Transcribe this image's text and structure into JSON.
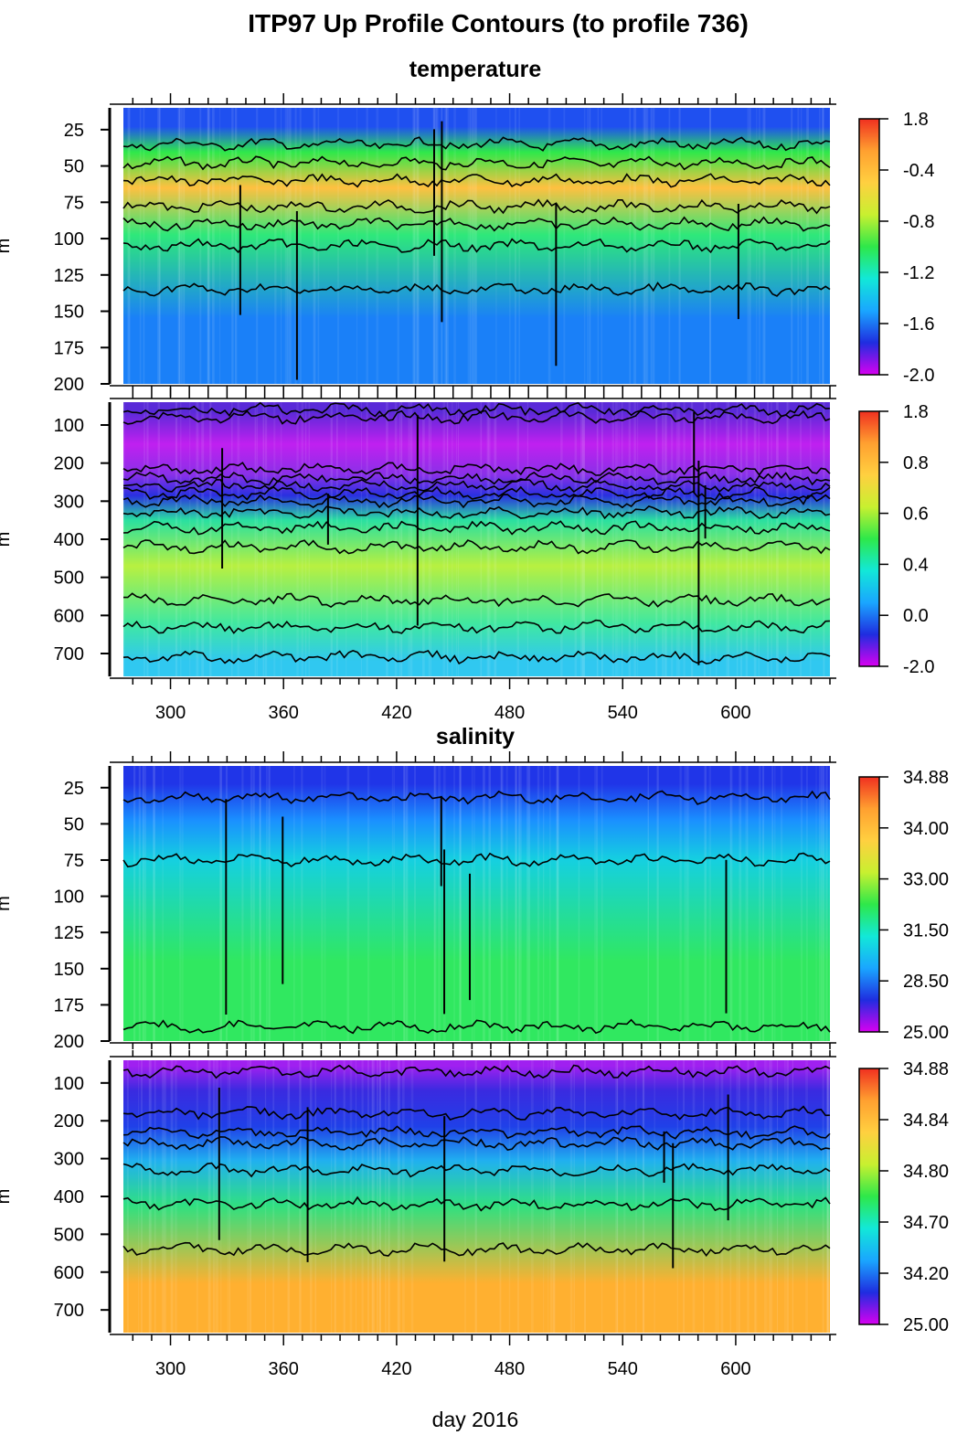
{
  "figure": {
    "title": "ITP97 Up Profile Contours (to profile 736)",
    "x_axis_label": "day 2016",
    "y_unit_label": "m"
  },
  "colors": {
    "temperature_scale": [
      "#d800f0",
      "#1f2de0",
      "#1aa6ff",
      "#12e8d8",
      "#2ee84a",
      "#c8f030",
      "#ffd040",
      "#ffa030",
      "#f03020"
    ],
    "salinity_scale": [
      "#d800f0",
      "#1f2de0",
      "#1aa6ff",
      "#12e8d8",
      "#2ee84a",
      "#c8f030",
      "#ffd040",
      "#ffa030",
      "#f03020"
    ]
  },
  "chart_data": [
    {
      "name": "temperature-upper",
      "section_title": "temperature",
      "type": "heatmap",
      "x_range": [
        275,
        650
      ],
      "y_range": [
        10,
        200
      ],
      "y_ticks": [
        25,
        50,
        75,
        100,
        125,
        150,
        175,
        200
      ],
      "x_ticks": [
        300,
        360,
        420,
        480,
        540,
        600
      ],
      "colorbar_ticks": [
        "1.8",
        "-0.4",
        "-0.8",
        "-1.2",
        "-1.6",
        "-2.0"
      ],
      "layers": [
        {
          "from": 10,
          "to": 36,
          "value_color": "#1f50f0"
        },
        {
          "from": 36,
          "to": 45,
          "value_color": "#2ee84a"
        },
        {
          "from": 45,
          "to": 85,
          "value_color": "#ffc040"
        },
        {
          "from": 85,
          "to": 110,
          "value_color": "#2ee87a"
        },
        {
          "from": 110,
          "to": 200,
          "value_color": "#1a80f8"
        }
      ],
      "contour_depths": [
        35,
        48,
        60,
        78,
        90,
        105,
        135
      ]
    },
    {
      "name": "temperature-lower",
      "type": "heatmap",
      "x_range": [
        275,
        650
      ],
      "y_range": [
        40,
        760
      ],
      "y_ticks": [
        100,
        200,
        300,
        400,
        500,
        600,
        700
      ],
      "x_ticks": [
        300,
        360,
        420,
        480,
        540,
        600
      ],
      "x_tick_labels": [
        "300",
        "360",
        "420",
        "480",
        "540",
        "600"
      ],
      "colorbar_ticks": [
        "1.8",
        "0.8",
        "0.6",
        "0.4",
        "0.0",
        "-2.0"
      ],
      "layers": [
        {
          "from": 40,
          "to": 90,
          "value_color": "#5a2ad8"
        },
        {
          "from": 90,
          "to": 210,
          "value_color": "#c020f0"
        },
        {
          "from": 210,
          "to": 250,
          "value_color": "#8a30e8"
        },
        {
          "from": 250,
          "to": 320,
          "value_color": "#2a30e0"
        },
        {
          "from": 320,
          "to": 380,
          "value_color": "#2ae0a0"
        },
        {
          "from": 380,
          "to": 560,
          "value_color": "#b8f040"
        },
        {
          "from": 560,
          "to": 680,
          "value_color": "#40e8a0"
        },
        {
          "from": 680,
          "to": 760,
          "value_color": "#30c8f0"
        }
      ],
      "contour_depths": [
        60,
        80,
        215,
        240,
        260,
        280,
        300,
        330,
        370,
        420,
        560,
        630,
        710
      ]
    },
    {
      "name": "salinity-upper",
      "section_title": "salinity",
      "type": "heatmap",
      "x_range": [
        275,
        650
      ],
      "y_range": [
        10,
        200
      ],
      "y_ticks": [
        25,
        50,
        75,
        100,
        125,
        150,
        175,
        200
      ],
      "x_ticks": [
        300,
        360,
        420,
        480,
        540,
        600
      ],
      "colorbar_ticks": [
        "34.88",
        "34.00",
        "33.00",
        "31.50",
        "28.50",
        "25.00"
      ],
      "layers": [
        {
          "from": 10,
          "to": 35,
          "value_color": "#2035e8"
        },
        {
          "from": 35,
          "to": 60,
          "value_color": "#1a90ff"
        },
        {
          "from": 60,
          "to": 90,
          "value_color": "#15d0e0"
        },
        {
          "from": 90,
          "to": 200,
          "value_color": "#30e860"
        }
      ],
      "contour_depths": [
        32,
        75,
        190
      ]
    },
    {
      "name": "salinity-lower",
      "type": "heatmap",
      "x_range": [
        275,
        650
      ],
      "y_range": [
        40,
        760
      ],
      "y_ticks": [
        100,
        200,
        300,
        400,
        500,
        600,
        700
      ],
      "x_ticks": [
        300,
        360,
        420,
        480,
        540,
        600
      ],
      "x_tick_labels": [
        "300",
        "360",
        "420",
        "480",
        "540",
        "600"
      ],
      "colorbar_ticks": [
        "34.88",
        "34.84",
        "34.80",
        "34.70",
        "34.20",
        "25.00"
      ],
      "layers": [
        {
          "from": 40,
          "to": 70,
          "value_color": "#a020f0"
        },
        {
          "from": 70,
          "to": 170,
          "value_color": "#3a2ae0"
        },
        {
          "from": 170,
          "to": 260,
          "value_color": "#2040e8"
        },
        {
          "from": 260,
          "to": 350,
          "value_color": "#20b0f0"
        },
        {
          "from": 350,
          "to": 500,
          "value_color": "#30e080"
        },
        {
          "from": 500,
          "to": 760,
          "value_color": "#ffb030"
        }
      ],
      "contour_depths": [
        70,
        180,
        230,
        260,
        330,
        420,
        540
      ]
    }
  ]
}
